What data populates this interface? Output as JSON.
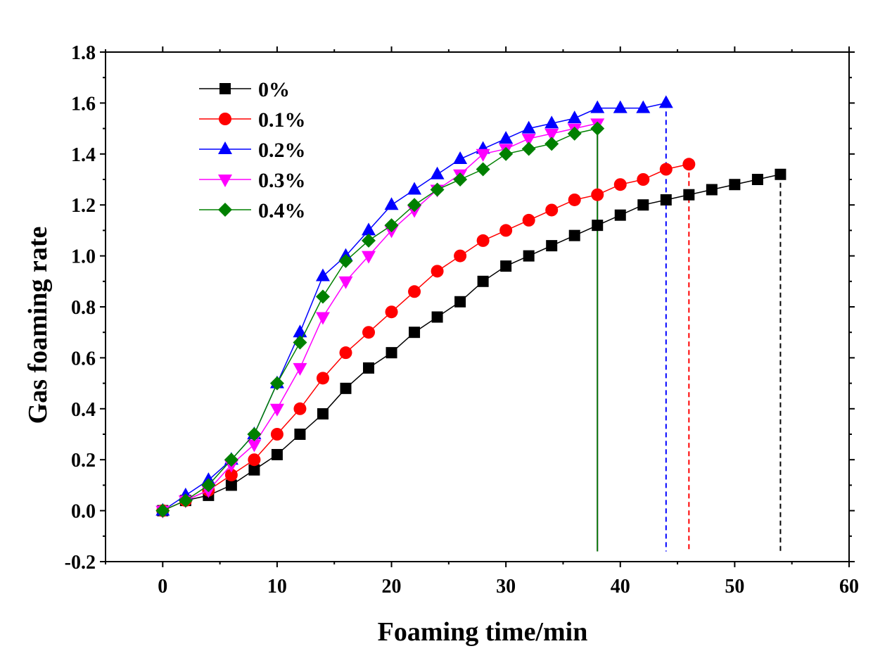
{
  "chart_data": {
    "type": "line",
    "title": "",
    "xlabel": "Foaming time/min",
    "ylabel": "Gas foaming rate",
    "xlim": [
      -5,
      60
    ],
    "ylim": [
      -0.2,
      1.8
    ],
    "xticks": [
      0,
      10,
      20,
      30,
      40,
      50,
      60
    ],
    "yticks": [
      -0.2,
      0.0,
      0.2,
      0.4,
      0.6,
      0.8,
      1.0,
      1.2,
      1.4,
      1.6,
      1.8
    ],
    "xtick_labels": [
      "0",
      "10",
      "20",
      "30",
      "40",
      "50",
      "60"
    ],
    "ytick_labels": [
      "-0.2",
      "0.0",
      "0.2",
      "0.4",
      "0.6",
      "0.8",
      "1.0",
      "1.2",
      "1.4",
      "1.6",
      "1.8"
    ],
    "legend_position": "top-left",
    "series": [
      {
        "name": "0%",
        "color": "#000000",
        "marker": "square",
        "end_x": 54,
        "x": [
          0,
          2,
          4,
          6,
          8,
          10,
          12,
          14,
          16,
          18,
          20,
          22,
          24,
          26,
          28,
          30,
          32,
          34,
          36,
          38,
          40,
          42,
          44,
          46,
          48,
          50,
          52,
          54
        ],
        "y": [
          0.0,
          0.04,
          0.06,
          0.1,
          0.16,
          0.22,
          0.3,
          0.38,
          0.48,
          0.56,
          0.62,
          0.7,
          0.76,
          0.82,
          0.9,
          0.96,
          1.0,
          1.04,
          1.08,
          1.12,
          1.16,
          1.2,
          1.22,
          1.24,
          1.26,
          1.28,
          1.3,
          1.32
        ]
      },
      {
        "name": "0.1%",
        "color": "#ff0000",
        "marker": "circle",
        "end_x": 46,
        "x": [
          0,
          2,
          4,
          6,
          8,
          10,
          12,
          14,
          16,
          18,
          20,
          22,
          24,
          26,
          28,
          30,
          32,
          34,
          36,
          38,
          40,
          42,
          44,
          46
        ],
        "y": [
          0.0,
          0.04,
          0.08,
          0.14,
          0.2,
          0.3,
          0.4,
          0.52,
          0.62,
          0.7,
          0.78,
          0.86,
          0.94,
          1.0,
          1.06,
          1.1,
          1.14,
          1.18,
          1.22,
          1.24,
          1.28,
          1.3,
          1.34,
          1.36
        ]
      },
      {
        "name": "0.2%",
        "color": "#0000ff",
        "marker": "triangle-up",
        "end_x": 44,
        "x": [
          0,
          2,
          4,
          6,
          8,
          10,
          12,
          14,
          16,
          18,
          20,
          22,
          24,
          26,
          28,
          30,
          32,
          34,
          36,
          38,
          40,
          42,
          44
        ],
        "y": [
          0.0,
          0.06,
          0.12,
          0.2,
          0.3,
          0.5,
          0.7,
          0.92,
          1.0,
          1.1,
          1.2,
          1.26,
          1.32,
          1.38,
          1.42,
          1.46,
          1.5,
          1.52,
          1.54,
          1.58,
          1.58,
          1.58,
          1.6
        ]
      },
      {
        "name": "0.3%",
        "color": "#ff00ff",
        "marker": "triangle-down",
        "end_x": 38,
        "x": [
          0,
          2,
          4,
          6,
          8,
          10,
          12,
          14,
          16,
          18,
          20,
          22,
          24,
          26,
          28,
          30,
          32,
          34,
          36,
          38
        ],
        "y": [
          0.0,
          0.04,
          0.08,
          0.18,
          0.26,
          0.4,
          0.56,
          0.76,
          0.9,
          1.0,
          1.1,
          1.18,
          1.26,
          1.32,
          1.4,
          1.42,
          1.46,
          1.48,
          1.5,
          1.52
        ]
      },
      {
        "name": "0.4%",
        "color": "#008000",
        "marker": "diamond",
        "end_x": 38,
        "x": [
          0,
          2,
          4,
          6,
          8,
          10,
          12,
          14,
          16,
          18,
          20,
          22,
          24,
          26,
          28,
          30,
          32,
          34,
          36,
          38
        ],
        "y": [
          0.0,
          0.04,
          0.1,
          0.2,
          0.3,
          0.5,
          0.66,
          0.84,
          0.98,
          1.06,
          1.12,
          1.2,
          1.26,
          1.3,
          1.34,
          1.4,
          1.42,
          1.44,
          1.48,
          1.5
        ]
      }
    ]
  }
}
